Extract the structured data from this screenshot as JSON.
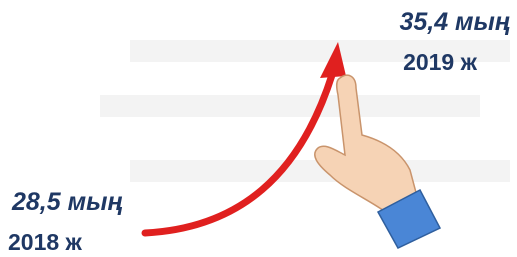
{
  "start": {
    "value": "28,5 мың",
    "year": "2018 ж"
  },
  "end": {
    "value": "35,4 мың",
    "year": "2019 ж"
  }
}
